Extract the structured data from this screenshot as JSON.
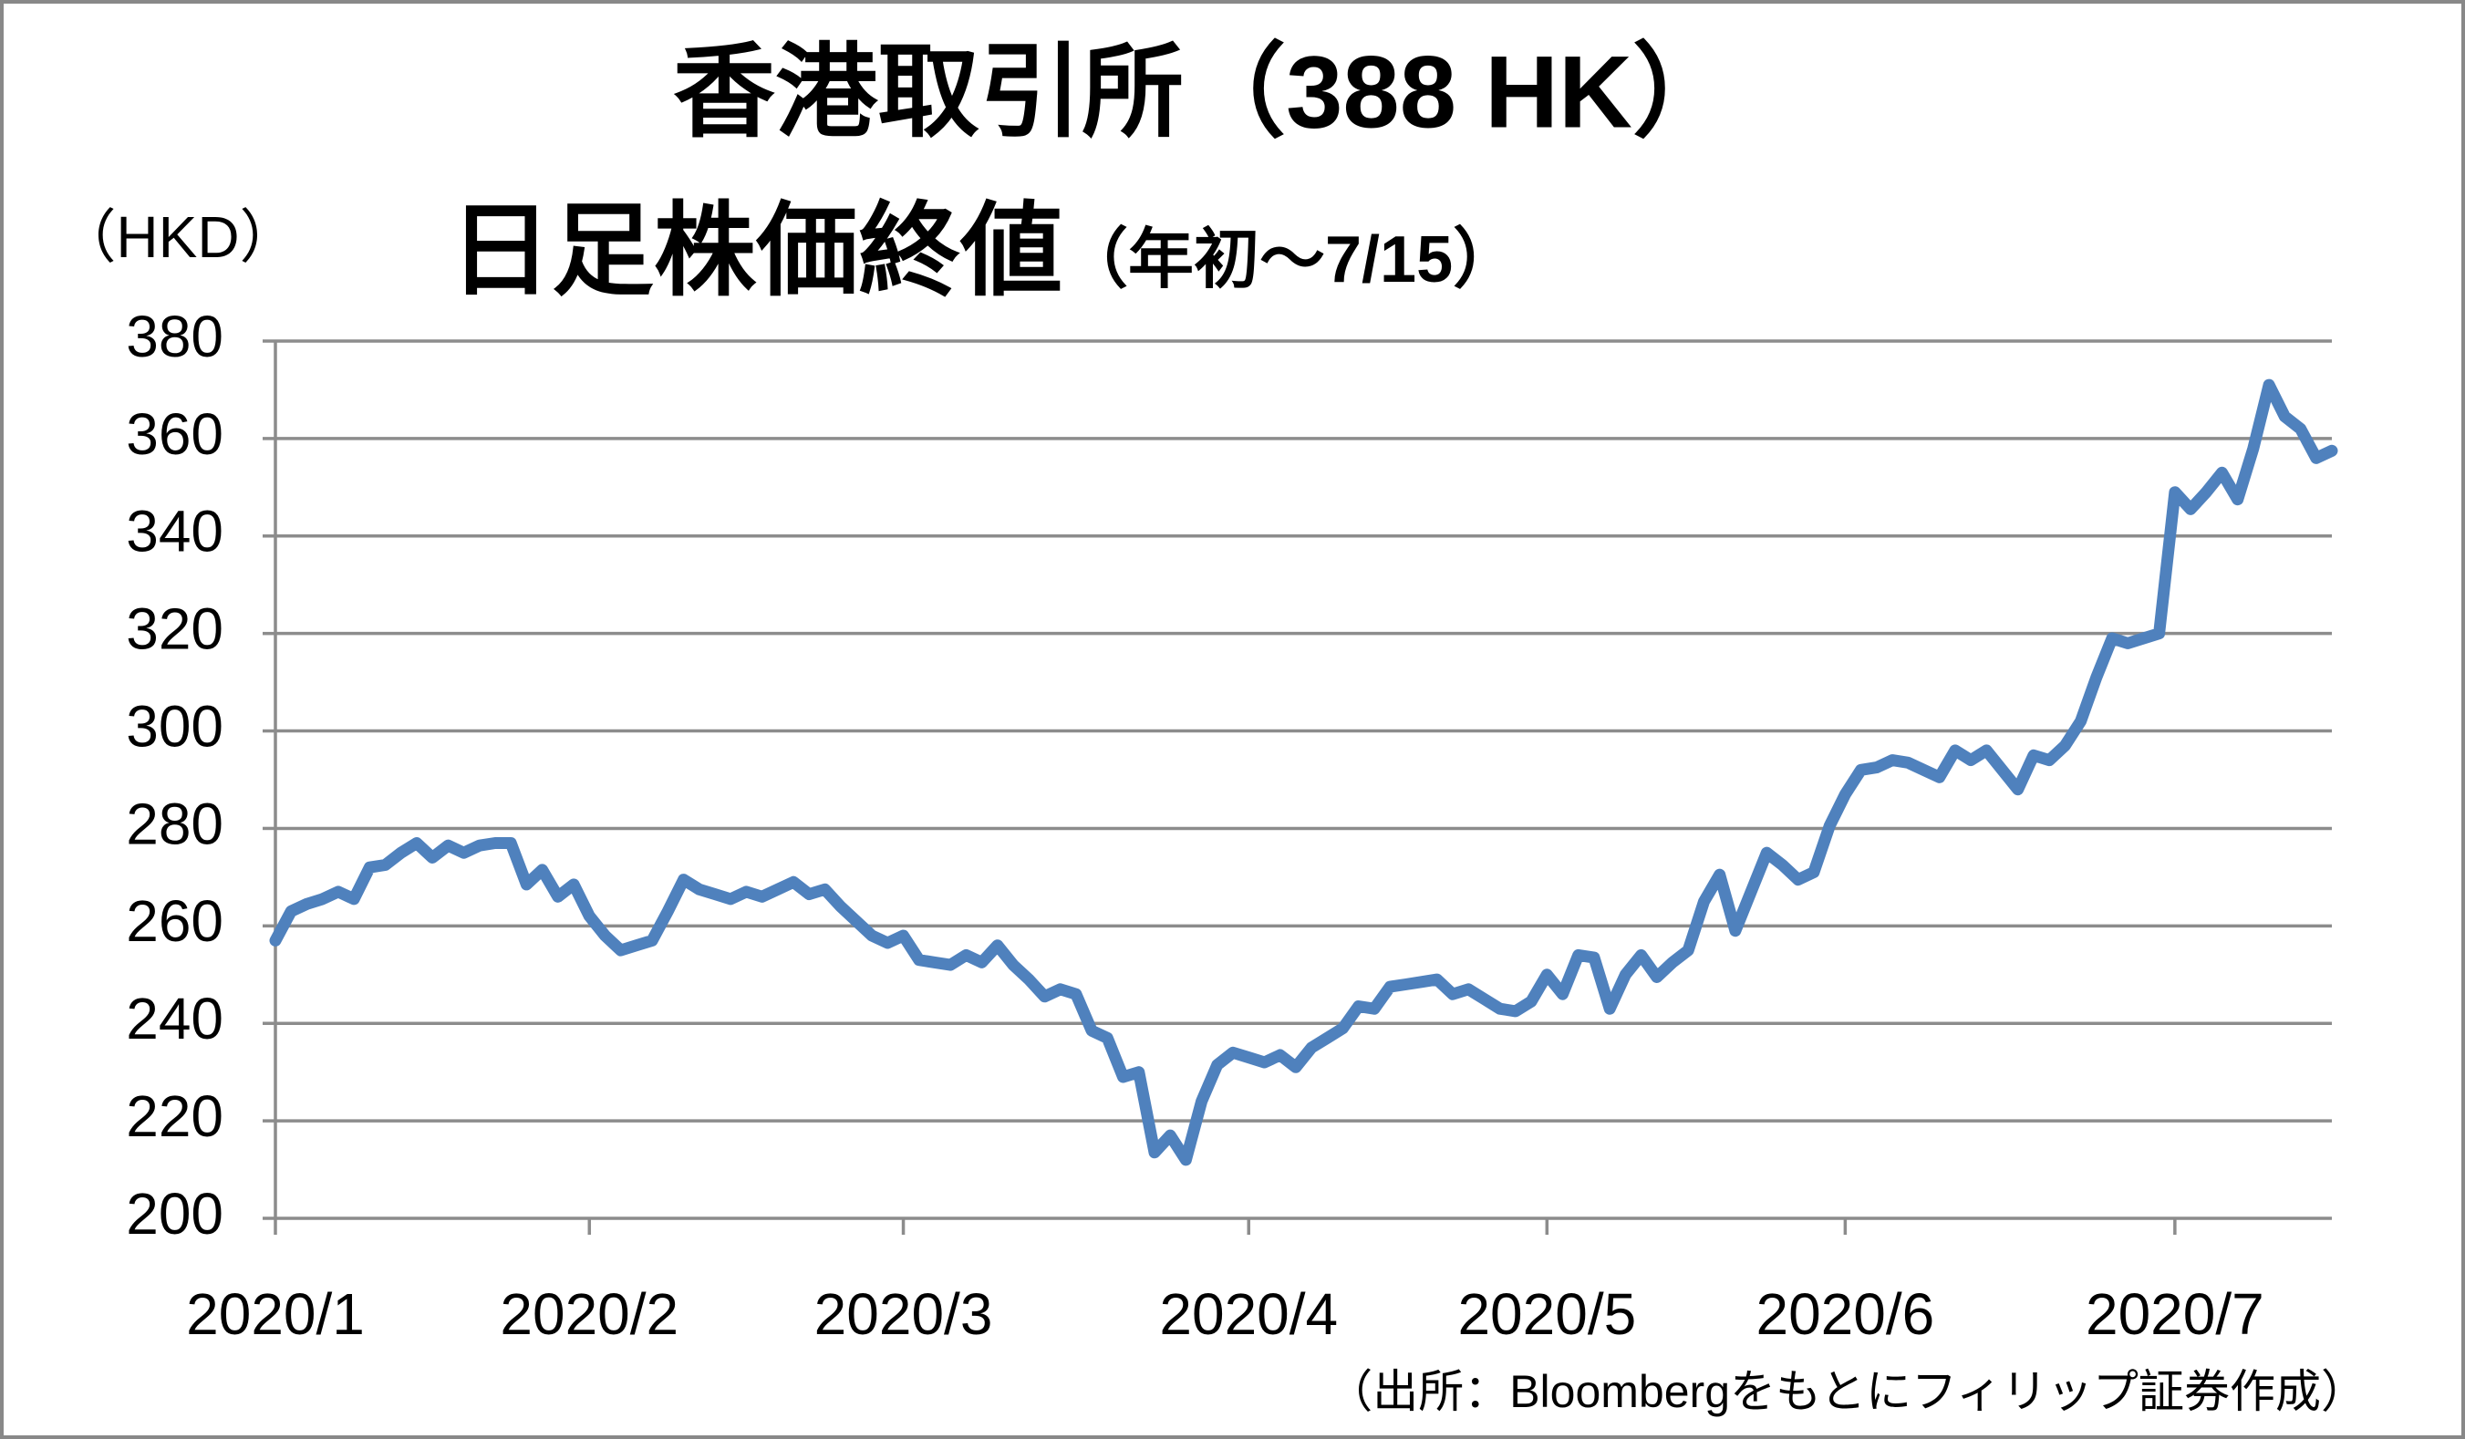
{
  "chart_data": {
    "type": "line",
    "title": "香港取引所（388 HK）",
    "subtitle": "日足株価終値",
    "subtitle_note": "（年初～7/15）",
    "y_axis_label": "（HKD）",
    "source": "（出所：Bloombergをもとにフィリップ証券作成）",
    "color": "#4f81bd",
    "grid": true,
    "ylim": [
      200,
      380
    ],
    "yticks": [
      200,
      220,
      240,
      260,
      280,
      300,
      320,
      340,
      360,
      380
    ],
    "categories": [
      "2020/1",
      null,
      null,
      null,
      null,
      null,
      null,
      null,
      null,
      null,
      null,
      null,
      null,
      null,
      null,
      null,
      null,
      null,
      null,
      null,
      "2020/2",
      null,
      null,
      null,
      null,
      null,
      null,
      null,
      null,
      null,
      null,
      null,
      null,
      null,
      null,
      null,
      null,
      null,
      null,
      null,
      "2020/3",
      null,
      null,
      null,
      null,
      null,
      null,
      null,
      null,
      null,
      null,
      null,
      null,
      null,
      null,
      null,
      null,
      null,
      null,
      null,
      null,
      null,
      "2020/4",
      null,
      null,
      null,
      null,
      null,
      null,
      null,
      null,
      null,
      null,
      null,
      null,
      null,
      null,
      null,
      null,
      null,
      null,
      "2020/5",
      null,
      null,
      null,
      null,
      null,
      null,
      null,
      null,
      null,
      null,
      null,
      null,
      null,
      null,
      null,
      null,
      null,
      null,
      "2020/6",
      null,
      null,
      null,
      null,
      null,
      null,
      null,
      null,
      null,
      null,
      null,
      null,
      null,
      null,
      null,
      null,
      null,
      null,
      null,
      null,
      "2020/7",
      null,
      null,
      null,
      null,
      null,
      null,
      null,
      null,
      null,
      null
    ],
    "values": [
      257,
      263,
      264.5,
      265.5,
      267,
      265.5,
      272,
      272.5,
      275,
      277,
      274,
      276.5,
      275,
      276.5,
      277,
      277,
      268.5,
      271.5,
      266,
      268.5,
      262,
      258,
      255,
      256,
      257,
      263,
      269.5,
      267.5,
      266.5,
      265.5,
      267,
      266,
      267.5,
      269,
      266.5,
      267.5,
      264,
      261,
      258,
      256.5,
      258,
      253,
      252.5,
      252,
      254,
      252.5,
      256,
      252,
      249,
      245.5,
      247,
      246,
      238.5,
      237,
      229,
      230,
      213.5,
      217,
      212,
      224,
      231.5,
      234,
      233,
      232,
      233.5,
      231,
      235,
      237,
      239,
      243.5,
      243,
      247.5,
      248,
      248.5,
      249,
      246,
      247,
      245,
      243,
      242.5,
      244.5,
      250,
      246,
      254,
      253.5,
      243,
      250,
      254,
      249.5,
      252.5,
      255,
      265,
      270.5,
      259,
      267,
      275,
      272.5,
      269.5,
      271,
      280.5,
      287,
      292,
      292.5,
      294,
      293.5,
      292,
      290.5,
      296,
      294,
      296,
      292,
      288,
      295,
      294,
      297,
      302,
      311,
      319,
      318,
      319,
      320,
      349,
      345.5,
      349,
      353,
      347.5,
      358,
      371,
      364.5,
      362,
      356,
      357.5
    ]
  }
}
